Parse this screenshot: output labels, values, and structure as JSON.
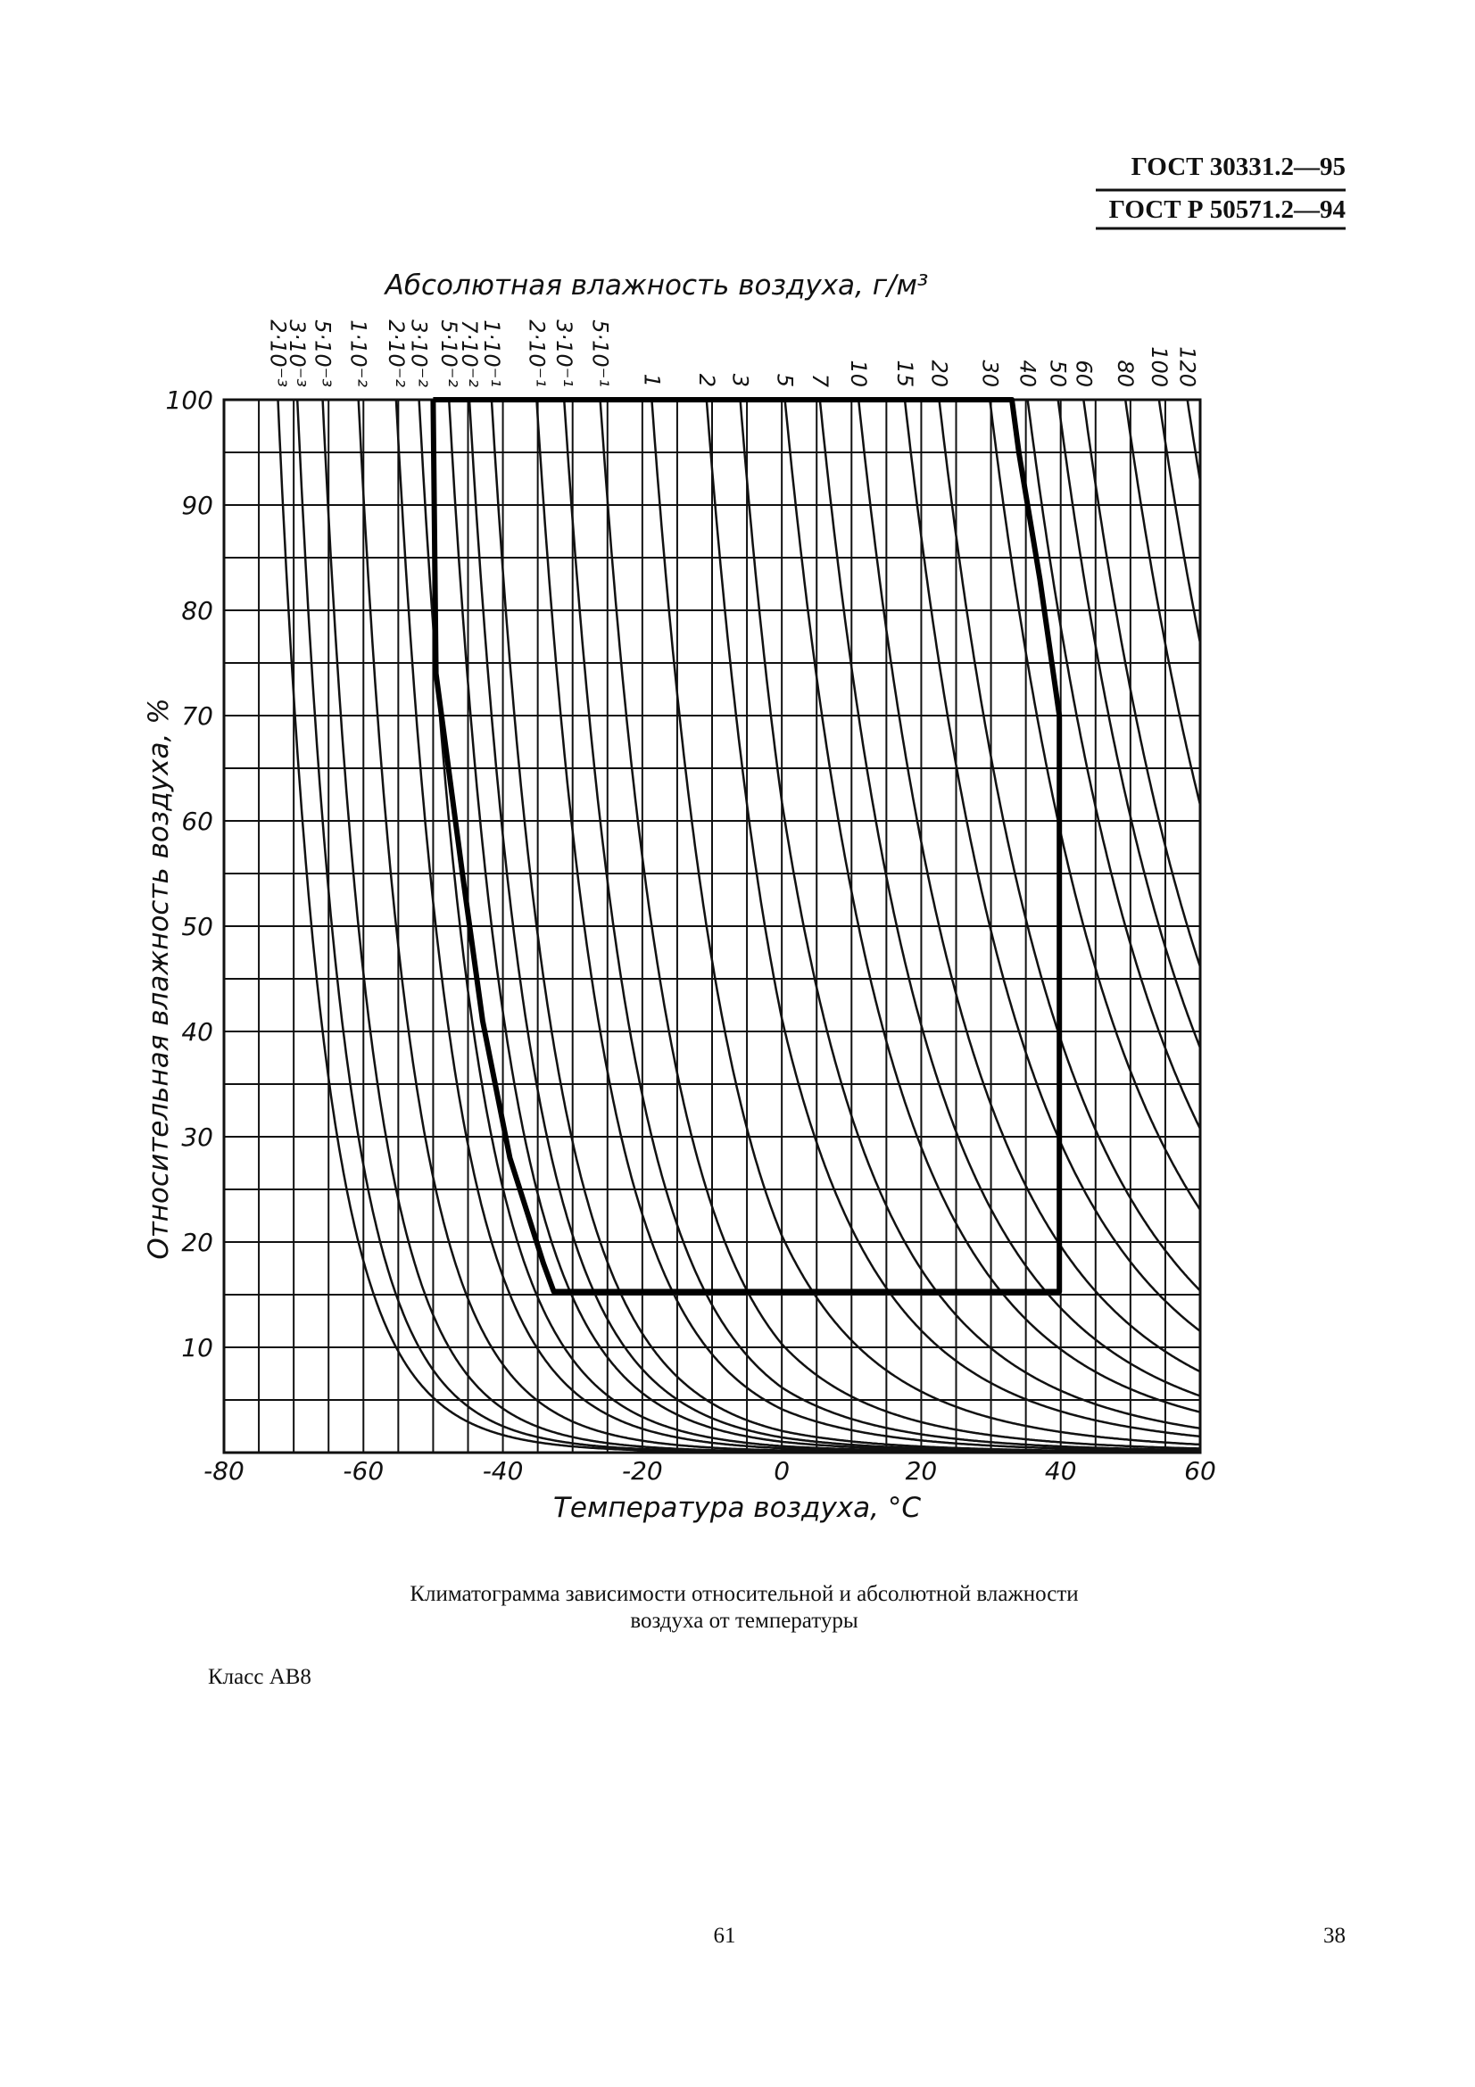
{
  "header": {
    "lines": [
      "ГОСТ 30331.2—95",
      "ГОСТ Р 50571.2—94"
    ]
  },
  "chart_data": {
    "type": "climatogram",
    "title": "Абсолютная влажность воздуха, г/м³",
    "x_label": "Температура воздуха, °С",
    "y_label": "Относительная влажность воздуха, %",
    "xlim": [
      -80,
      60
    ],
    "ylim": [
      0,
      100
    ],
    "xticks": [
      -80,
      -60,
      -40,
      -20,
      0,
      20,
      40,
      60
    ],
    "yticks": [
      10,
      20,
      30,
      40,
      50,
      60,
      70,
      80,
      90,
      100
    ],
    "xgrid": [
      -80,
      -75,
      -70,
      -65,
      -60,
      -55,
      -50,
      -45,
      -40,
      -35,
      -30,
      -25,
      -20,
      -15,
      -10,
      -5,
      0,
      5,
      10,
      15,
      20,
      25,
      30,
      35,
      40,
      45,
      50,
      55,
      60
    ],
    "ygrid": [
      0,
      5,
      10,
      15,
      20,
      25,
      30,
      35,
      40,
      45,
      50,
      55,
      60,
      65,
      70,
      75,
      80,
      85,
      90,
      95,
      100
    ],
    "curves": [
      {
        "value": 0.002,
        "label": "2·10⁻³"
      },
      {
        "value": 0.003,
        "label": "3·10⁻³"
      },
      {
        "value": 0.005,
        "label": "5·10⁻³"
      },
      {
        "value": 0.01,
        "label": "1·10⁻²"
      },
      {
        "value": 0.02,
        "label": "2·10⁻²"
      },
      {
        "value": 0.03,
        "label": "3·10⁻²"
      },
      {
        "value": 0.05,
        "label": "5·10⁻²"
      },
      {
        "value": 0.07,
        "label": "7·10⁻²"
      },
      {
        "value": 0.1,
        "label": "1·10⁻¹"
      },
      {
        "value": 0.2,
        "label": "2·10⁻¹"
      },
      {
        "value": 0.3,
        "label": "3·10⁻¹"
      },
      {
        "value": 0.5,
        "label": "5·10⁻¹"
      },
      1,
      2,
      3,
      5,
      7,
      10,
      15,
      20,
      30,
      40,
      50,
      60,
      80,
      100,
      120
    ],
    "boundary": {
      "x": [
        -50,
        -49.6,
        -45.8,
        -42.9,
        -39,
        -34.2,
        -32.7,
        39.8,
        39.8,
        37,
        34,
        33,
        -50
      ],
      "y": [
        100,
        74,
        55,
        41,
        28,
        18,
        15.3,
        15.3,
        70,
        83,
        95,
        100,
        100
      ]
    },
    "caption": [
      "Климатограмма зависимости относительной и абсолютной влажности",
      "воздуха от температуры"
    ]
  },
  "class_label": "Класс АВ8",
  "footer": {
    "page": "61",
    "sheet": "38"
  }
}
